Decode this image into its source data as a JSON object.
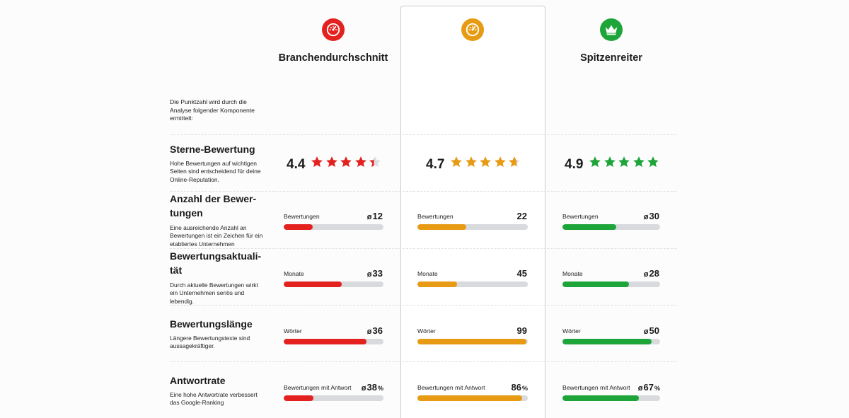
{
  "colors": {
    "red": "#e3211f",
    "orange": "#e79b14",
    "green": "#1ea53a",
    "track": "#d9dadd"
  },
  "columns": [
    {
      "key": "avg",
      "name": "Branchendurchschnitt",
      "icon": "gauge-icon",
      "color": "#e3211f"
    },
    {
      "key": "you",
      "name": "",
      "icon": "gauge-icon",
      "color": "#e79b14"
    },
    {
      "key": "top",
      "name": "Spitzenreiter",
      "icon": "crown-icon",
      "color": "#1ea53a"
    }
  ],
  "intro": "Die Punktzahl wird durch die Analyse folgender Komponente ermittelt:",
  "rating": {
    "title": "Sterne-Bewertung",
    "desc": "Hohe Bewertungen auf wichtigen Seiten sind entscheidend für deine Online-Reputation.",
    "values": [
      {
        "score": "4.4",
        "stars": 4.4
      },
      {
        "score": "4.7",
        "stars": 4.7
      },
      {
        "score": "4.9",
        "stars": 4.9
      }
    ]
  },
  "rows": [
    {
      "title": "Anzahl der Bewer-tungen",
      "desc": "Eine ausreichende Anzahl an Bewertungen ist ein Zeichen für ein etabliertes Unternehmen",
      "cells": [
        {
          "label": "Bewertungen",
          "prefix": "ø",
          "value": "12",
          "suffix": "",
          "fill": 0.29
        },
        {
          "label": "Bewertungen",
          "prefix": "",
          "value": "22",
          "suffix": "",
          "fill": 0.44
        },
        {
          "label": "Bewertungen",
          "prefix": "ø",
          "value": "30",
          "suffix": "",
          "fill": 0.55
        }
      ]
    },
    {
      "title": "Bewertungsaktuali-tät",
      "desc": "Durch aktuelle Bewertungen wirkt ein Unternehmen seriös und lebendig.",
      "cells": [
        {
          "label": "Monate",
          "prefix": "ø",
          "value": "33",
          "suffix": "",
          "fill": 0.58
        },
        {
          "label": "Monate",
          "prefix": "",
          "value": "45",
          "suffix": "",
          "fill": 0.36
        },
        {
          "label": "Monate",
          "prefix": "ø",
          "value": "28",
          "suffix": "",
          "fill": 0.68
        }
      ]
    },
    {
      "title": "Bewertungslänge",
      "desc": "Längere Bewertungstexte sind aussagekräftiger.",
      "cells": [
        {
          "label": "Wörter",
          "prefix": "ø",
          "value": "36",
          "suffix": "",
          "fill": 0.83
        },
        {
          "label": "Wörter",
          "prefix": "",
          "value": "99",
          "suffix": "",
          "fill": 0.99
        },
        {
          "label": "Wörter",
          "prefix": "ø",
          "value": "50",
          "suffix": "",
          "fill": 0.91
        }
      ]
    },
    {
      "title": "Antwortrate",
      "desc": "Eine hohe Antwortrate verbessert das Google-Ranking",
      "cells": [
        {
          "label": "Bewertungen mit Antwort",
          "prefix": "ø",
          "value": "38",
          "suffix": "%",
          "fill": 0.3
        },
        {
          "label": "Bewertungen mit Antwort",
          "prefix": "",
          "value": "86",
          "suffix": "%",
          "fill": 0.95
        },
        {
          "label": "Bewertungen mit Antwort",
          "prefix": "ø",
          "value": "67",
          "suffix": "%",
          "fill": 0.78
        }
      ]
    }
  ]
}
